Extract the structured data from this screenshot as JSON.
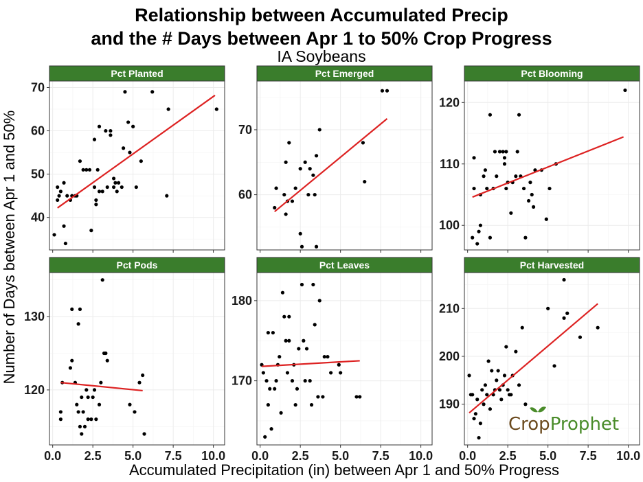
{
  "title_line1": "Relationship between Accumulated Precip",
  "title_line2": "and the # Days between Apr 1 to 50% Crop Progress",
  "subtitle": "IA Soybeans",
  "logo": {
    "part1": "Crop",
    "part2": "Prophet"
  },
  "colors": {
    "strip": "#3a7d2c",
    "trend": "#dd2222",
    "points": "#000000",
    "grid": "#ebebeb",
    "logo_brown": "#6b4a1e",
    "logo_green": "#4a8c2a"
  },
  "chart_data": [
    {
      "type": "scatter",
      "title": "Pct Planted",
      "xlabel": "Accumulated Precipitation (in) between Apr 1 and 50% Progress",
      "ylabel": "Number of Days between Apr 1 and 50%",
      "xlim": [
        -0.2,
        10.7
      ],
      "ylim": [
        32.5,
        71.5
      ],
      "xticks": [
        0.0,
        2.5,
        5.0,
        7.5,
        10.0
      ],
      "yticks": [
        40,
        50,
        60,
        70
      ],
      "points": [
        [
          0.1,
          36
        ],
        [
          0.3,
          47
        ],
        [
          0.3,
          44
        ],
        [
          0.4,
          45
        ],
        [
          0.5,
          46
        ],
        [
          0.7,
          48
        ],
        [
          0.7,
          38
        ],
        [
          0.8,
          34
        ],
        [
          0.9,
          45
        ],
        [
          1.1,
          44
        ],
        [
          1.2,
          45
        ],
        [
          1.4,
          45
        ],
        [
          1.5,
          45
        ],
        [
          1.7,
          53
        ],
        [
          1.9,
          51
        ],
        [
          2.1,
          51
        ],
        [
          2.3,
          51
        ],
        [
          2.4,
          37
        ],
        [
          2.6,
          58
        ],
        [
          2.6,
          47
        ],
        [
          2.7,
          43
        ],
        [
          2.7,
          44
        ],
        [
          2.8,
          51
        ],
        [
          2.9,
          61
        ],
        [
          2.9,
          46
        ],
        [
          3.1,
          46
        ],
        [
          3.3,
          60
        ],
        [
          3.4,
          47
        ],
        [
          3.6,
          60
        ],
        [
          3.6,
          59
        ],
        [
          3.8,
          49
        ],
        [
          3.8,
          47
        ],
        [
          3.9,
          48
        ],
        [
          4.0,
          46
        ],
        [
          4.1,
          48
        ],
        [
          4.3,
          47
        ],
        [
          4.4,
          56
        ],
        [
          4.5,
          69
        ],
        [
          4.7,
          62
        ],
        [
          4.8,
          55
        ],
        [
          5.0,
          61
        ],
        [
          5.2,
          47
        ],
        [
          5.5,
          53
        ],
        [
          6.2,
          69
        ],
        [
          7.1,
          45
        ],
        [
          7.2,
          65
        ],
        [
          10.2,
          65
        ]
      ],
      "fit": [
        [
          0.3,
          42.2
        ],
        [
          10.1,
          68.2
        ]
      ]
    },
    {
      "type": "scatter",
      "title": "Pct Emerged",
      "xlim": [
        -0.2,
        10.7
      ],
      "ylim": [
        51.5,
        77.5
      ],
      "xticks": [
        0.0,
        2.5,
        5.0,
        7.5,
        10.0
      ],
      "yticks": [
        60,
        70
      ],
      "points": [
        [
          0.9,
          58
        ],
        [
          1.0,
          61
        ],
        [
          1.5,
          60
        ],
        [
          1.6,
          57
        ],
        [
          1.6,
          65
        ],
        [
          1.7,
          59
        ],
        [
          1.8,
          68
        ],
        [
          2.0,
          59
        ],
        [
          2.2,
          61
        ],
        [
          2.5,
          64
        ],
        [
          2.5,
          54
        ],
        [
          2.6,
          52
        ],
        [
          2.8,
          65
        ],
        [
          3.0,
          60
        ],
        [
          3.1,
          64
        ],
        [
          3.3,
          63
        ],
        [
          3.4,
          60
        ],
        [
          3.5,
          52
        ],
        [
          3.5,
          66
        ],
        [
          3.7,
          70
        ],
        [
          6.4,
          68
        ],
        [
          6.5,
          62
        ],
        [
          7.6,
          76
        ],
        [
          7.9,
          76
        ]
      ],
      "fit": [
        [
          0.9,
          57.4
        ],
        [
          7.9,
          71.7
        ]
      ]
    },
    {
      "type": "scatter",
      "title": "Pct Blooming",
      "xlim": [
        -0.2,
        10.7
      ],
      "ylim": [
        96,
        123.5
      ],
      "xticks": [
        0.0,
        2.5,
        5.0,
        7.5,
        10.0
      ],
      "yticks": [
        100,
        110,
        120
      ],
      "points": [
        [
          0.3,
          98
        ],
        [
          0.4,
          106
        ],
        [
          0.4,
          111
        ],
        [
          0.6,
          97
        ],
        [
          0.7,
          99
        ],
        [
          0.8,
          100
        ],
        [
          0.8,
          105
        ],
        [
          1.0,
          108
        ],
        [
          1.1,
          109
        ],
        [
          1.2,
          106
        ],
        [
          1.4,
          118
        ],
        [
          1.4,
          98
        ],
        [
          1.6,
          106
        ],
        [
          1.7,
          112
        ],
        [
          1.8,
          108
        ],
        [
          2.0,
          112
        ],
        [
          2.2,
          112
        ],
        [
          2.3,
          111
        ],
        [
          2.3,
          110
        ],
        [
          2.4,
          112
        ],
        [
          2.4,
          106
        ],
        [
          2.5,
          107
        ],
        [
          2.7,
          102
        ],
        [
          2.8,
          107
        ],
        [
          3.0,
          108
        ],
        [
          3.1,
          112
        ],
        [
          3.2,
          118
        ],
        [
          3.3,
          108
        ],
        [
          3.5,
          106
        ],
        [
          3.6,
          98
        ],
        [
          3.8,
          104
        ],
        [
          3.9,
          107
        ],
        [
          4.0,
          105
        ],
        [
          4.1,
          103
        ],
        [
          4.2,
          109
        ],
        [
          4.6,
          109
        ],
        [
          4.9,
          101
        ],
        [
          5.1,
          106
        ],
        [
          5.5,
          110
        ],
        [
          9.8,
          122
        ]
      ],
      "fit": [
        [
          0.3,
          104.6
        ],
        [
          9.7,
          114.4
        ]
      ]
    },
    {
      "type": "scatter",
      "title": "Pct Pods",
      "xlim": [
        -0.2,
        10.7
      ],
      "ylim": [
        112.5,
        136
      ],
      "xticks": [
        0.0,
        2.5,
        5.0,
        7.5,
        10.0
      ],
      "yticks": [
        120,
        130
      ],
      "points": [
        [
          0.5,
          117
        ],
        [
          0.5,
          116
        ],
        [
          0.6,
          121
        ],
        [
          1.1,
          123
        ],
        [
          1.2,
          131
        ],
        [
          1.2,
          124
        ],
        [
          1.4,
          121
        ],
        [
          1.5,
          118
        ],
        [
          1.6,
          117
        ],
        [
          1.6,
          129
        ],
        [
          1.7,
          131
        ],
        [
          1.7,
          115
        ],
        [
          1.8,
          119
        ],
        [
          1.8,
          114
        ],
        [
          1.9,
          117
        ],
        [
          2.0,
          115
        ],
        [
          2.1,
          120
        ],
        [
          2.2,
          119
        ],
        [
          2.2,
          116
        ],
        [
          2.4,
          116
        ],
        [
          2.5,
          119
        ],
        [
          2.6,
          120
        ],
        [
          2.7,
          116
        ],
        [
          2.9,
          118
        ],
        [
          3.0,
          121
        ],
        [
          3.1,
          135
        ],
        [
          3.2,
          125
        ],
        [
          3.3,
          125
        ],
        [
          3.4,
          124
        ],
        [
          4.8,
          118
        ],
        [
          5.1,
          117
        ],
        [
          5.4,
          121
        ],
        [
          5.6,
          122
        ],
        [
          5.7,
          114
        ]
      ],
      "fit": [
        [
          0.5,
          121.0
        ],
        [
          5.6,
          119.9
        ]
      ]
    },
    {
      "type": "scatter",
      "title": "Pct Leaves",
      "xlim": [
        -0.2,
        10.7
      ],
      "ylim": [
        162,
        183.5
      ],
      "xticks": [
        0.0,
        2.5,
        5.0,
        7.5,
        10.0
      ],
      "yticks": [
        170,
        180
      ],
      "points": [
        [
          0.1,
          172
        ],
        [
          0.2,
          171
        ],
        [
          0.3,
          163
        ],
        [
          0.4,
          170
        ],
        [
          0.5,
          176
        ],
        [
          0.5,
          167
        ],
        [
          0.6,
          169
        ],
        [
          0.7,
          164
        ],
        [
          0.8,
          176
        ],
        [
          0.9,
          169
        ],
        [
          1.0,
          170
        ],
        [
          1.1,
          172
        ],
        [
          1.2,
          173
        ],
        [
          1.3,
          166
        ],
        [
          1.4,
          181
        ],
        [
          1.5,
          178
        ],
        [
          1.6,
          175
        ],
        [
          1.7,
          171
        ],
        [
          1.8,
          175
        ],
        [
          1.8,
          178
        ],
        [
          2.0,
          170
        ],
        [
          2.1,
          172
        ],
        [
          2.2,
          167
        ],
        [
          2.3,
          169
        ],
        [
          2.4,
          174
        ],
        [
          2.6,
          182
        ],
        [
          2.7,
          175
        ],
        [
          2.8,
          170
        ],
        [
          2.9,
          174
        ],
        [
          3.1,
          170
        ],
        [
          3.2,
          167
        ],
        [
          3.3,
          182
        ],
        [
          3.4,
          177
        ],
        [
          3.6,
          168
        ],
        [
          3.7,
          180
        ],
        [
          3.9,
          168
        ],
        [
          4.0,
          173
        ],
        [
          4.2,
          173
        ],
        [
          4.4,
          171
        ],
        [
          4.9,
          172
        ],
        [
          5.0,
          171
        ],
        [
          6.0,
          168
        ],
        [
          6.2,
          168
        ]
      ],
      "fit": [
        [
          0.1,
          171.8
        ],
        [
          6.2,
          172.5
        ]
      ]
    },
    {
      "type": "scatter",
      "title": "Pct Harvested",
      "xlim": [
        -0.2,
        10.7
      ],
      "ylim": [
        181.5,
        217.5
      ],
      "xticks": [
        0.0,
        2.5,
        5.0,
        7.5,
        10.0
      ],
      "yticks": [
        190,
        200,
        210
      ],
      "points": [
        [
          0.1,
          196
        ],
        [
          0.2,
          192
        ],
        [
          0.3,
          192
        ],
        [
          0.4,
          187
        ],
        [
          0.5,
          188
        ],
        [
          0.6,
          191
        ],
        [
          0.7,
          183
        ],
        [
          0.8,
          186
        ],
        [
          0.9,
          193
        ],
        [
          1.0,
          190
        ],
        [
          1.1,
          194
        ],
        [
          1.2,
          192
        ],
        [
          1.3,
          199
        ],
        [
          1.4,
          189
        ],
        [
          1.5,
          197
        ],
        [
          1.6,
          192
        ],
        [
          1.7,
          193
        ],
        [
          1.8,
          195
        ],
        [
          1.9,
          197
        ],
        [
          2.0,
          193
        ],
        [
          2.1,
          191
        ],
        [
          2.2,
          194
        ],
        [
          2.3,
          196
        ],
        [
          2.4,
          202
        ],
        [
          2.5,
          193
        ],
        [
          2.6,
          192
        ],
        [
          2.7,
          192
        ],
        [
          2.8,
          196
        ],
        [
          3.0,
          201
        ],
        [
          3.2,
          194
        ],
        [
          3.4,
          206
        ],
        [
          3.6,
          190
        ],
        [
          5.0,
          210
        ],
        [
          5.4,
          198
        ],
        [
          6.0,
          208
        ],
        [
          6.0,
          216
        ],
        [
          6.2,
          209
        ],
        [
          7.0,
          204
        ],
        [
          8.1,
          206
        ]
      ],
      "fit": [
        [
          0.1,
          188.2
        ],
        [
          8.1,
          211.0
        ]
      ]
    }
  ]
}
